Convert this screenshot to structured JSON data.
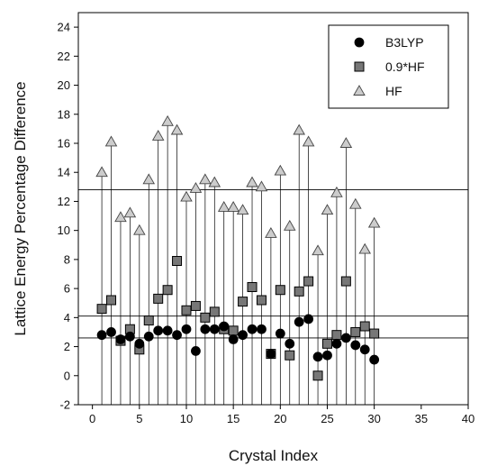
{
  "chart_data": {
    "type": "scatter",
    "title": "",
    "xlabel": "Crystal Index",
    "ylabel": "Lattice Energy Percentage Difference",
    "xlim": [
      -1.5,
      40
    ],
    "ylim": [
      -2,
      25
    ],
    "xticks": [
      0,
      5,
      10,
      15,
      20,
      25,
      30,
      35,
      40
    ],
    "yticks": [
      -2,
      0,
      2,
      4,
      6,
      8,
      10,
      12,
      14,
      16,
      18,
      20,
      22,
      24
    ],
    "legend_position": "top-right",
    "reference_lines": [
      12.8,
      4.1,
      2.6
    ],
    "x": [
      1,
      2,
      3,
      4,
      5,
      6,
      7,
      8,
      9,
      10,
      11,
      12,
      13,
      14,
      15,
      16,
      17,
      18,
      19,
      20,
      21,
      22,
      23,
      24,
      25,
      26,
      27,
      28,
      29,
      30
    ],
    "series": [
      {
        "name": "B3LYP",
        "marker": "circle",
        "color": "#000000",
        "values": [
          2.8,
          3.0,
          2.5,
          2.7,
          2.2,
          2.7,
          3.1,
          3.1,
          2.8,
          3.2,
          1.7,
          3.2,
          3.2,
          3.4,
          2.5,
          2.8,
          3.2,
          3.2,
          1.5,
          2.9,
          2.2,
          3.7,
          3.9,
          1.3,
          1.4,
          2.2,
          2.6,
          2.1,
          1.8,
          1.1
        ]
      },
      {
        "name": "0.9*HF",
        "marker": "square",
        "color": "#777777",
        "values": [
          4.6,
          5.2,
          2.4,
          3.2,
          1.8,
          3.8,
          5.3,
          5.9,
          7.9,
          4.5,
          4.8,
          4.0,
          4.4,
          3.2,
          3.1,
          5.1,
          6.1,
          5.2,
          1.5,
          5.9,
          1.4,
          5.8,
          6.5,
          0.0,
          2.2,
          2.8,
          6.5,
          3.0,
          3.4,
          2.9
        ]
      },
      {
        "name": "HF",
        "marker": "triangle",
        "color": "#cccccc",
        "values": [
          14.0,
          16.1,
          10.9,
          11.2,
          10.0,
          13.5,
          16.5,
          17.5,
          16.9,
          12.3,
          12.9,
          13.5,
          13.3,
          11.6,
          11.6,
          11.4,
          13.3,
          13.0,
          9.8,
          14.1,
          10.3,
          16.9,
          16.1,
          8.6,
          11.4,
          12.6,
          16.0,
          11.8,
          8.7,
          10.5
        ]
      }
    ]
  }
}
